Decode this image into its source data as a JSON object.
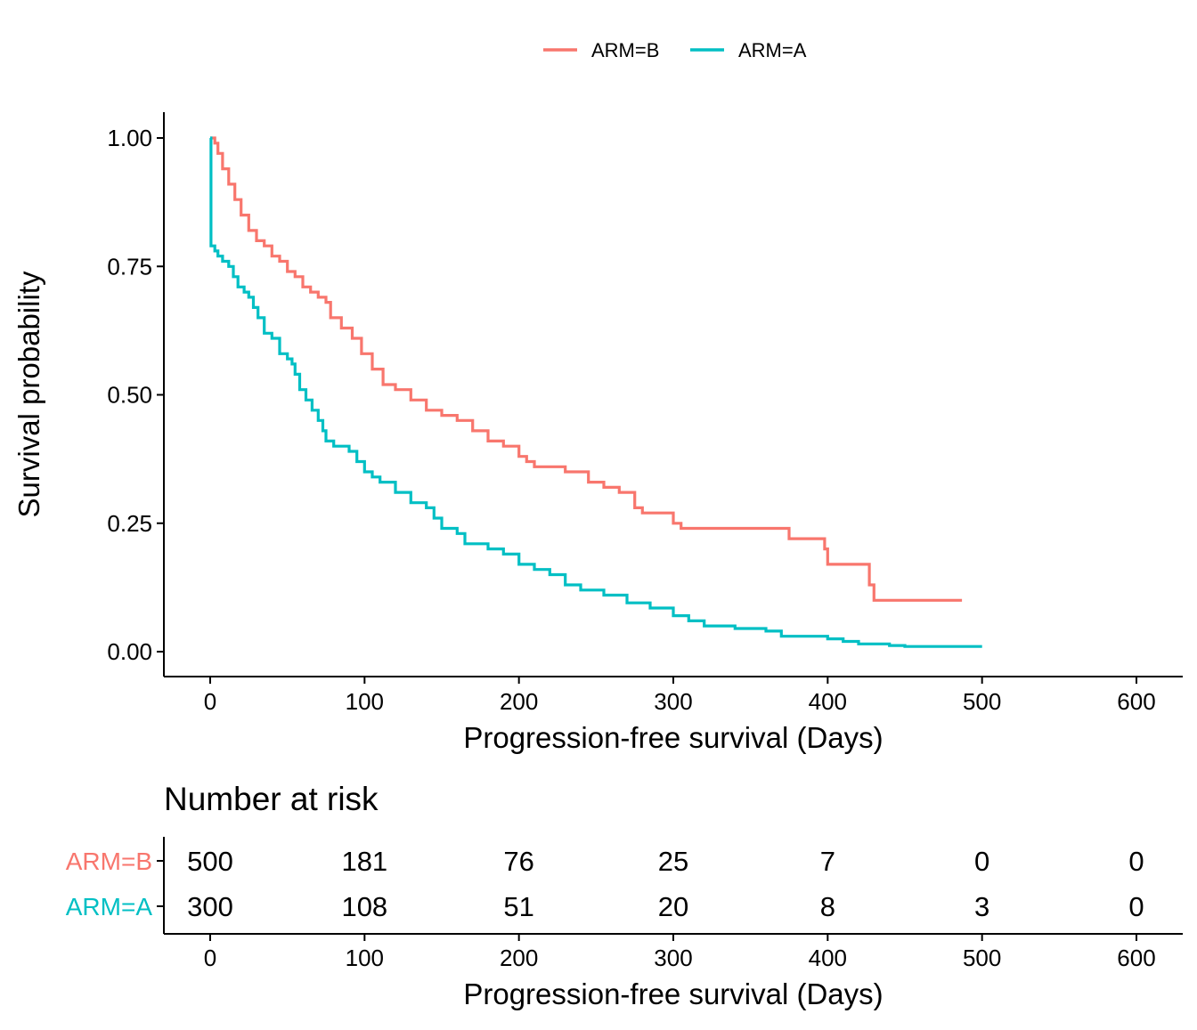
{
  "legend": {
    "position": "top",
    "items": [
      {
        "label": "ARM=B",
        "color": "#F8766D"
      },
      {
        "label": "ARM=A",
        "color": "#00BFC4"
      }
    ]
  },
  "chart_data": {
    "type": "line",
    "step": true,
    "xlabel": "Progression-free survival (Days)",
    "ylabel": "Survival probability",
    "xlim": [
      0,
      600
    ],
    "ylim": [
      0,
      1
    ],
    "xticks": [
      0,
      100,
      200,
      300,
      400,
      500,
      600
    ],
    "xtick_labels": [
      "0",
      "100",
      "200",
      "300",
      "400",
      "500",
      "600"
    ],
    "yticks": [
      0,
      0.25,
      0.5,
      0.75,
      1
    ],
    "ytick_labels": [
      "0.00",
      "0.25",
      "0.50",
      "0.75",
      "1.00"
    ],
    "grid": false,
    "series": [
      {
        "name": "ARM=B",
        "color": "#F8766D",
        "points": [
          [
            0,
            1.0
          ],
          [
            3,
            0.99
          ],
          [
            5,
            0.97
          ],
          [
            8,
            0.94
          ],
          [
            12,
            0.91
          ],
          [
            16,
            0.88
          ],
          [
            20,
            0.85
          ],
          [
            25,
            0.82
          ],
          [
            30,
            0.8
          ],
          [
            35,
            0.79
          ],
          [
            40,
            0.77
          ],
          [
            45,
            0.76
          ],
          [
            50,
            0.74
          ],
          [
            55,
            0.73
          ],
          [
            60,
            0.71
          ],
          [
            65,
            0.7
          ],
          [
            70,
            0.69
          ],
          [
            75,
            0.68
          ],
          [
            78,
            0.65
          ],
          [
            85,
            0.63
          ],
          [
            92,
            0.61
          ],
          [
            98,
            0.58
          ],
          [
            105,
            0.55
          ],
          [
            112,
            0.52
          ],
          [
            120,
            0.51
          ],
          [
            130,
            0.49
          ],
          [
            140,
            0.47
          ],
          [
            150,
            0.46
          ],
          [
            160,
            0.45
          ],
          [
            170,
            0.43
          ],
          [
            180,
            0.41
          ],
          [
            190,
            0.4
          ],
          [
            200,
            0.38
          ],
          [
            205,
            0.37
          ],
          [
            210,
            0.36
          ],
          [
            230,
            0.35
          ],
          [
            245,
            0.33
          ],
          [
            255,
            0.32
          ],
          [
            265,
            0.31
          ],
          [
            275,
            0.28
          ],
          [
            280,
            0.27
          ],
          [
            300,
            0.25
          ],
          [
            305,
            0.24
          ],
          [
            320,
            0.24
          ],
          [
            374,
            0.24
          ],
          [
            375,
            0.22
          ],
          [
            396,
            0.22
          ],
          [
            398,
            0.2
          ],
          [
            400,
            0.17
          ],
          [
            425,
            0.17
          ],
          [
            427,
            0.13
          ],
          [
            430,
            0.1
          ],
          [
            487,
            0.1
          ]
        ]
      },
      {
        "name": "ARM=A",
        "color": "#00BFC4",
        "points": [
          [
            0,
            1.0
          ],
          [
            0.5,
            0.79
          ],
          [
            3,
            0.78
          ],
          [
            5,
            0.77
          ],
          [
            8,
            0.76
          ],
          [
            12,
            0.75
          ],
          [
            15,
            0.73
          ],
          [
            18,
            0.71
          ],
          [
            22,
            0.7
          ],
          [
            25,
            0.69
          ],
          [
            28,
            0.67
          ],
          [
            31,
            0.65
          ],
          [
            35,
            0.62
          ],
          [
            40,
            0.61
          ],
          [
            45,
            0.58
          ],
          [
            50,
            0.57
          ],
          [
            53,
            0.56
          ],
          [
            55,
            0.54
          ],
          [
            58,
            0.51
          ],
          [
            62,
            0.49
          ],
          [
            66,
            0.47
          ],
          [
            70,
            0.45
          ],
          [
            73,
            0.43
          ],
          [
            75,
            0.41
          ],
          [
            80,
            0.4
          ],
          [
            90,
            0.39
          ],
          [
            95,
            0.37
          ],
          [
            100,
            0.35
          ],
          [
            105,
            0.34
          ],
          [
            110,
            0.33
          ],
          [
            120,
            0.31
          ],
          [
            130,
            0.29
          ],
          [
            140,
            0.28
          ],
          [
            145,
            0.26
          ],
          [
            150,
            0.24
          ],
          [
            160,
            0.23
          ],
          [
            165,
            0.21
          ],
          [
            180,
            0.2
          ],
          [
            190,
            0.19
          ],
          [
            200,
            0.17
          ],
          [
            210,
            0.16
          ],
          [
            220,
            0.15
          ],
          [
            230,
            0.13
          ],
          [
            240,
            0.12
          ],
          [
            255,
            0.11
          ],
          [
            270,
            0.095
          ],
          [
            285,
            0.085
          ],
          [
            300,
            0.07
          ],
          [
            310,
            0.06
          ],
          [
            320,
            0.05
          ],
          [
            340,
            0.045
          ],
          [
            360,
            0.04
          ],
          [
            370,
            0.03
          ],
          [
            395,
            0.03
          ],
          [
            400,
            0.025
          ],
          [
            410,
            0.02
          ],
          [
            420,
            0.015
          ],
          [
            440,
            0.012
          ],
          [
            450,
            0.01
          ],
          [
            500,
            0.01
          ]
        ]
      }
    ]
  },
  "risk_table": {
    "title": "Number at risk",
    "xlabel": "Progression-free survival (Days)",
    "xticks": [
      0,
      100,
      200,
      300,
      400,
      500,
      600
    ],
    "xtick_labels": [
      "0",
      "100",
      "200",
      "300",
      "400",
      "500",
      "600"
    ],
    "rows": [
      {
        "label": "ARM=B",
        "color": "#F8766D",
        "values": [
          "500",
          "181",
          "76",
          "25",
          "7",
          "0",
          "0"
        ]
      },
      {
        "label": "ARM=A",
        "color": "#00BFC4",
        "values": [
          "300",
          "108",
          "51",
          "20",
          "8",
          "3",
          "0"
        ]
      }
    ]
  }
}
